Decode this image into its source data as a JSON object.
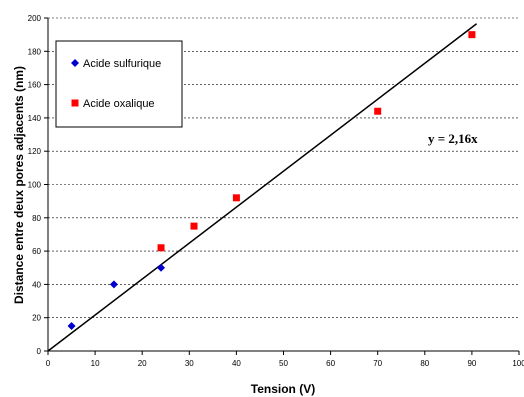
{
  "chart_data": {
    "type": "scatter",
    "xlabel": "Tension (V)",
    "ylabel": "Distance entre deux pores adjacents (nm)",
    "xlim": [
      0,
      100
    ],
    "ylim": [
      0,
      200
    ],
    "xticks": [
      0,
      10,
      20,
      30,
      40,
      50,
      60,
      70,
      80,
      90,
      100
    ],
    "yticks": [
      0,
      20,
      40,
      60,
      80,
      100,
      120,
      140,
      160,
      180,
      200
    ],
    "grid": "horizontal-dashed",
    "legend_position": "top-left",
    "series": [
      {
        "name": "Acide sulfurique",
        "marker": "diamond",
        "color": "#0000cc",
        "x": [
          5,
          14,
          24
        ],
        "y": [
          15,
          40,
          50
        ]
      },
      {
        "name": "Acide oxalique",
        "marker": "square",
        "color": "#ff0000",
        "x": [
          24,
          31,
          40,
          70,
          90
        ],
        "y": [
          62,
          75,
          92,
          144,
          190
        ]
      }
    ],
    "fit_line": {
      "slope": 2.16,
      "intercept": 0,
      "x_range": [
        0,
        91
      ],
      "color": "#000000"
    },
    "annotation": "y = 2,16x"
  }
}
